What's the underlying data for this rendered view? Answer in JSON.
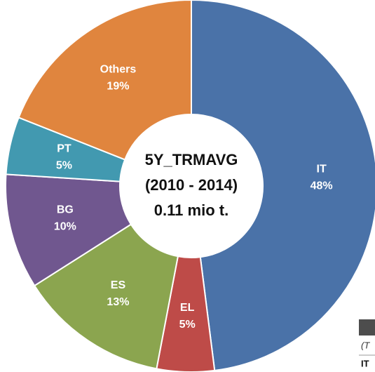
{
  "chart_data": {
    "type": "donut",
    "center_text": [
      "5Y_TRMAVG",
      "(2010 - 2014)",
      "0.11 mio t."
    ],
    "categories": [
      "IT",
      "EL",
      "ES",
      "BG",
      "PT",
      "Others"
    ],
    "values": [
      48,
      5,
      13,
      10,
      5,
      19
    ],
    "value_labels": [
      "48%",
      "5%",
      "13%",
      "10%",
      "5%",
      "19%"
    ],
    "colors": [
      "#4a72a8",
      "#be4b48",
      "#8ba54f",
      "#70578f",
      "#4299b0",
      "#e0853e"
    ]
  },
  "corner_table": {
    "rows": [
      "(T",
      "IT"
    ]
  }
}
